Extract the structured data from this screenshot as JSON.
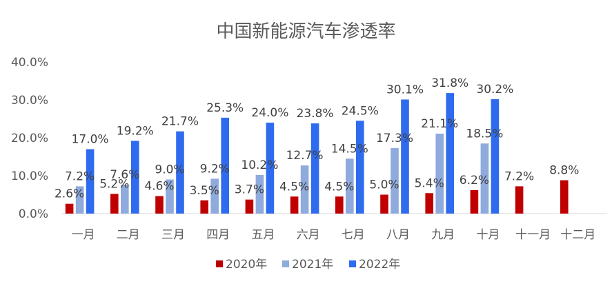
{
  "chart_data": {
    "type": "bar",
    "title": "中国新能源汽车渗透率",
    "categories": [
      "一月",
      "二月",
      "三月",
      "四月",
      "五月",
      "六月",
      "七月",
      "八月",
      "九月",
      "十月",
      "十一月",
      "十二月"
    ],
    "series": [
      {
        "name": "2020年",
        "color": "#C00000",
        "values": [
          2.6,
          5.2,
          4.6,
          3.5,
          3.7,
          4.5,
          4.5,
          5.0,
          5.4,
          6.2,
          7.2,
          8.8
        ],
        "labels": [
          "2.6%",
          "5.2%",
          "4.6%",
          "3.5%",
          "3.7%",
          "4.5%",
          "4.5%",
          "5.0%",
          "5.4%",
          "6.2%",
          "7.2%",
          "8.8%"
        ]
      },
      {
        "name": "2021年",
        "color": "#8FAADC",
        "values": [
          7.2,
          7.6,
          9.0,
          9.2,
          10.2,
          12.7,
          14.5,
          17.3,
          21.1,
          18.5,
          null,
          null
        ],
        "labels": [
          "7.2%",
          "7.6%",
          "9.0%",
          "9.2%",
          "10.2%",
          "12.7%",
          "14.5%",
          "17.3%",
          "21.1%",
          "18.5%",
          null,
          null
        ]
      },
      {
        "name": "2022年",
        "color": "#2F6BEE",
        "values": [
          17.0,
          19.2,
          21.7,
          25.3,
          24.0,
          23.8,
          24.5,
          30.1,
          31.8,
          30.2,
          null,
          null
        ],
        "labels": [
          "17.0%",
          "19.2%",
          "21.7%",
          "25.3%",
          "24.0%",
          "23.8%",
          "24.5%",
          "30.1%",
          "31.8%",
          "30.2%",
          null,
          null
        ]
      }
    ],
    "y_ticks": [
      0,
      10,
      20,
      30,
      40
    ],
    "y_tick_labels": [
      "0.0%",
      "10.0%",
      "20.0%",
      "30.0%",
      "40.0%"
    ],
    "ylim": [
      0,
      40
    ],
    "xlabel": "",
    "ylabel": "",
    "grid": false,
    "legend_position": "bottom"
  }
}
